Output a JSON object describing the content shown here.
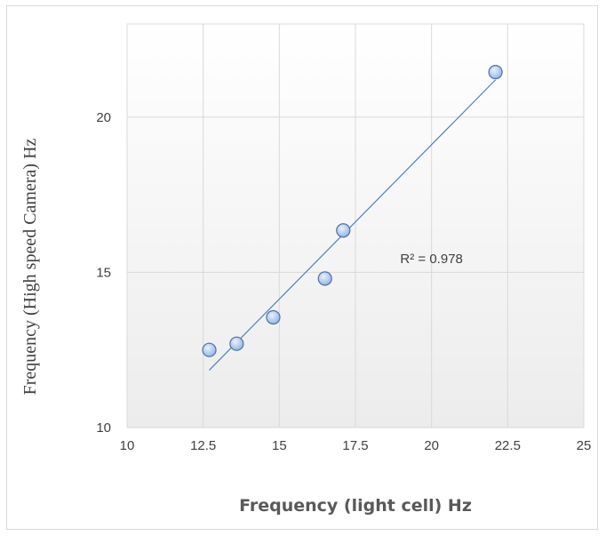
{
  "chart_data": {
    "type": "scatter",
    "title": "",
    "xlabel": "Frequency (light cell) Hz",
    "ylabel": "Frequency (High speed Camera) Hz",
    "xlim": [
      10,
      25
    ],
    "ylim": [
      10,
      23
    ],
    "x_ticks": [
      10,
      12.5,
      15,
      17.5,
      20,
      22.5,
      25
    ],
    "y_ticks": [
      10,
      15,
      20
    ],
    "x_tick_labels": [
      "10",
      "12.5",
      "15",
      "17.5",
      "20",
      "22.5",
      "25"
    ],
    "y_tick_labels": [
      "10",
      "15",
      "20"
    ],
    "grid": true,
    "series": [
      {
        "points": [
          {
            "x": 12.7,
            "y": 12.5
          },
          {
            "x": 13.6,
            "y": 12.7
          },
          {
            "x": 14.8,
            "y": 13.55
          },
          {
            "x": 16.5,
            "y": 14.8
          },
          {
            "x": 17.1,
            "y": 16.35
          },
          {
            "x": 22.1,
            "y": 21.45
          }
        ],
        "color": "#9dbfe8"
      }
    ],
    "trendline": {
      "type": "linear",
      "x_start": 12.7,
      "x_end": 22.1,
      "y_start": 11.85,
      "y_end": 21.2
    },
    "annotation": {
      "text": "R² = 0.978",
      "x": 20.0,
      "y": 15.3
    }
  }
}
